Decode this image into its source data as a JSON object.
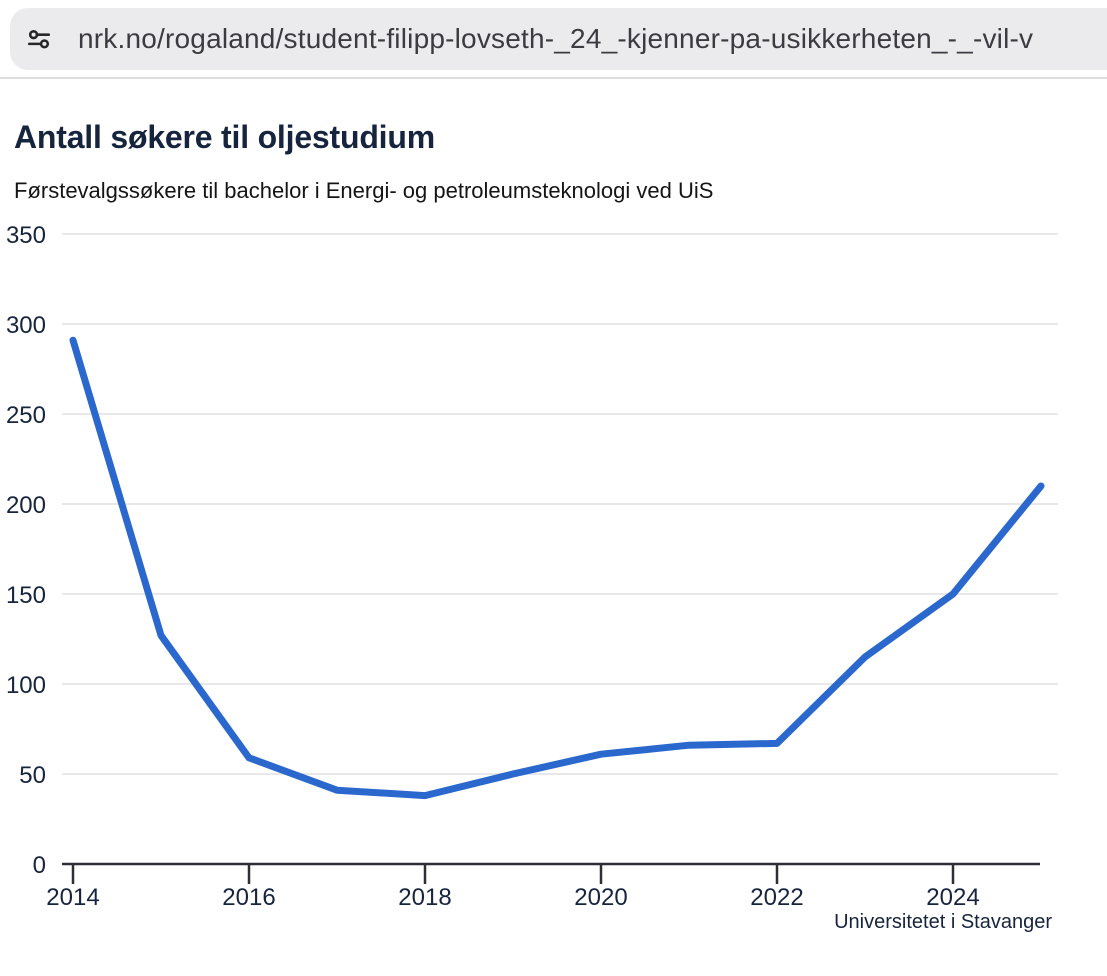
{
  "browser": {
    "url": "nrk.no/rogaland/student-filipp-lovseth-_24_-kjenner-pa-usikkerheten_-_-vil-v",
    "url_icon": "tune-sliders-icon",
    "urlbar_bg": "#ebebee"
  },
  "article": {
    "title": "Antall søkere til oljestudium",
    "subtitle": "Førstevalgssøkere til bachelor i Energi- og petroleumsteknologi ved UiS",
    "source": "Universitetet i Stavanger"
  },
  "chart_data": {
    "type": "line",
    "title": "Antall søkere til oljestudium",
    "subtitle": "Førstevalgssøkere til bachelor i Energi- og petroleumsteknologi ved UiS",
    "source": "Universitetet i Stavanger",
    "series_name": "Førstevalgssøkere",
    "x": [
      2014,
      2015,
      2016,
      2017,
      2018,
      2019,
      2020,
      2021,
      2022,
      2023,
      2024,
      2025
    ],
    "values": [
      291,
      127,
      59,
      41,
      38,
      50,
      61,
      66,
      67,
      115,
      150,
      210
    ],
    "xticks": [
      2014,
      2016,
      2018,
      2020,
      2022,
      2024
    ],
    "yticks": [
      0,
      50,
      100,
      150,
      200,
      250,
      300,
      350
    ],
    "ylim": [
      0,
      350
    ],
    "xlabel": "",
    "ylabel": "",
    "grid": "horizontal",
    "legend": "none",
    "line_color": "#2b68cd",
    "axis_color": "#2e2e34",
    "gridline_color": "#e8e8ea",
    "label_color": "#17243e"
  }
}
